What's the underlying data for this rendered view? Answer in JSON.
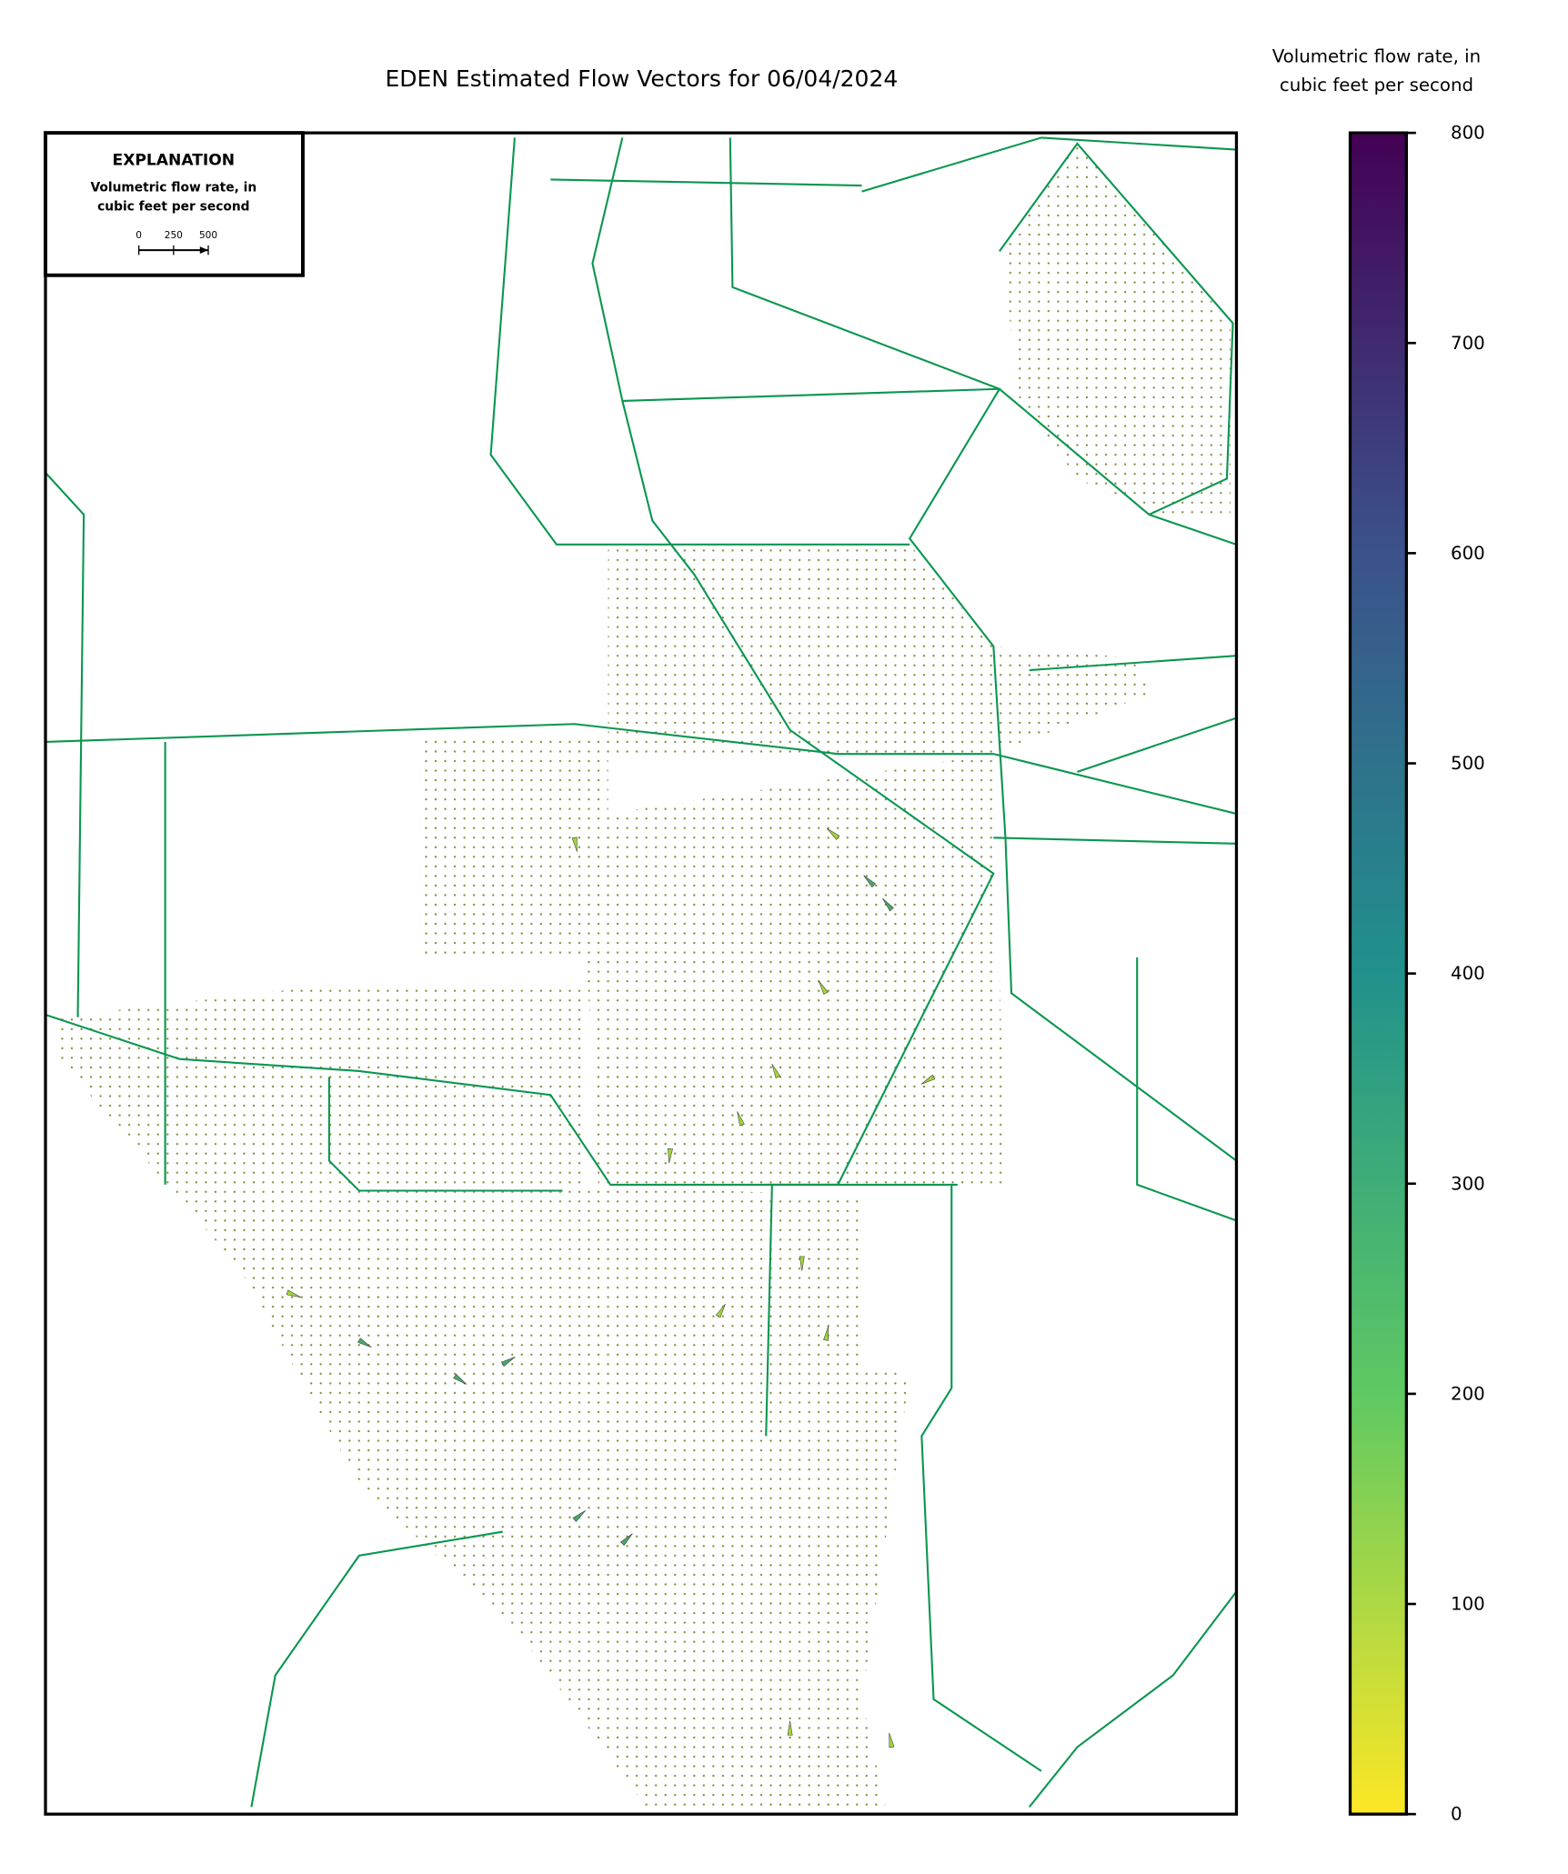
{
  "title": "EDEN Estimated Flow Vectors for 06/04/2024",
  "explanation": {
    "title": "EXPLANATION",
    "label_lines": [
      "Volumetric flow rate, in",
      "cubic feet per second"
    ],
    "scale_lim": [
      0,
      500
    ],
    "scale_ticks": [
      0,
      250,
      500
    ]
  },
  "colorbar": {
    "label_lines": [
      "Volumetric flow rate, in",
      "cubic feet per second"
    ],
    "lim": [
      0,
      800
    ],
    "ticks": [
      0,
      100,
      200,
      300,
      400,
      500,
      600,
      700,
      800
    ],
    "colormap": [
      "#fde725",
      "#5ec962",
      "#21918c",
      "#3b528b",
      "#440154"
    ]
  }
}
